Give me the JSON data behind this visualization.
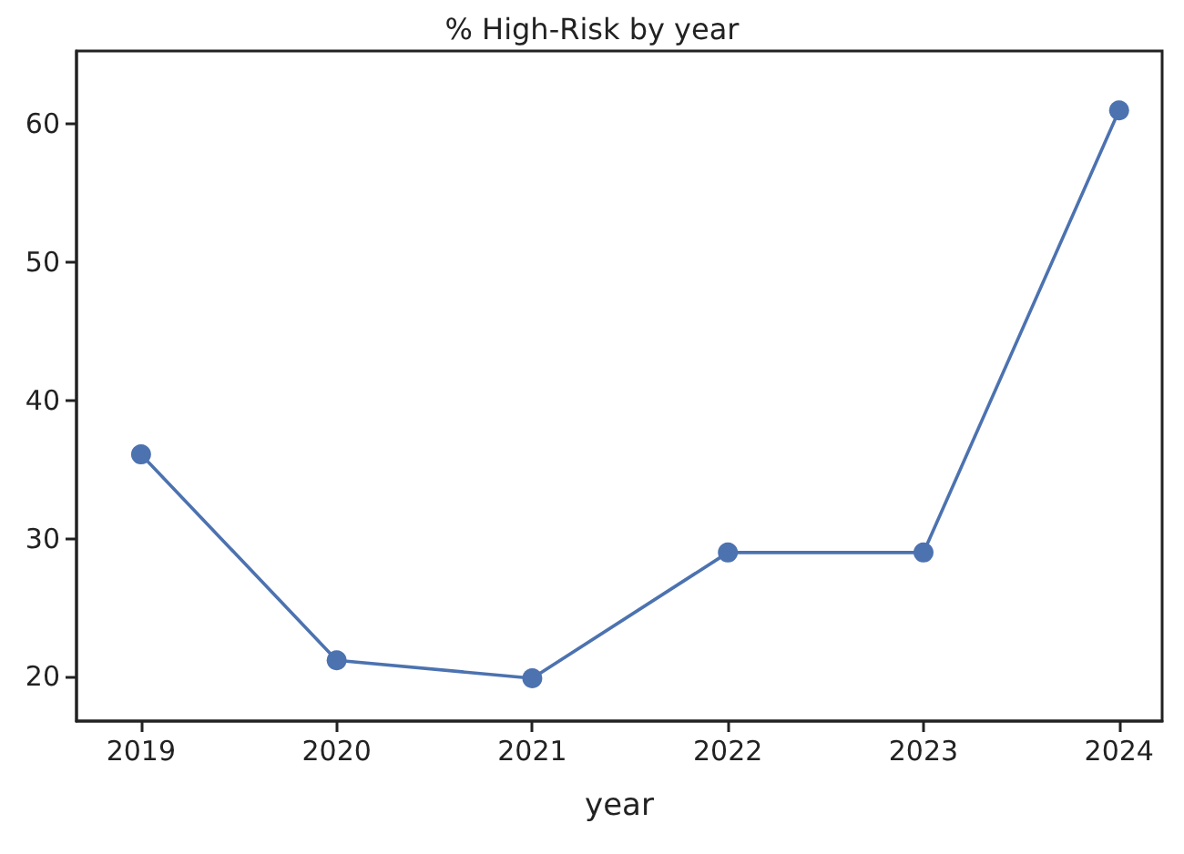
{
  "chart_data": {
    "type": "line",
    "title": "% High-Risk by year",
    "xlabel": "year",
    "x": [
      2019,
      2020,
      2021,
      2022,
      2023,
      2024
    ],
    "series": [
      {
        "color": "#4c72b0",
        "values": [
          36.1,
          21.2,
          19.9,
          29.0,
          29.0,
          61.0
        ]
      }
    ],
    "xlim": [
      2018.67,
      2024.22
    ],
    "xticks": [
      2019,
      2020,
      2021,
      2022,
      2023,
      2024
    ],
    "ylim": [
      16.8,
      65.3
    ],
    "yticks": [
      20,
      30,
      40,
      50,
      60
    ],
    "grid": false,
    "marker": "circle",
    "line_style": "solid"
  }
}
